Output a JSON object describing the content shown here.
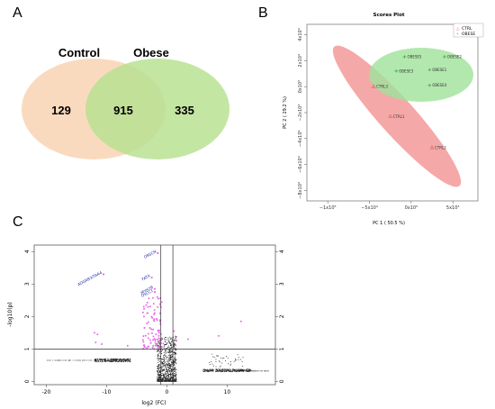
{
  "panels": {
    "a": {
      "letter": "A",
      "set1": "Control",
      "set2": "Obese",
      "only1": "129",
      "both": "915",
      "only2": "335",
      "color1": "#f9d6b8",
      "color2": "#b7e08f"
    },
    "b": {
      "letter": "B",
      "chart_data": {
        "type": "scatter",
        "title": "Scores Plot",
        "xlabel": "PC 1 ( 50.5 %)",
        "ylabel": "PC 2 ( 29.2 %)",
        "xticks": [
          "−1x10⁵",
          "−5x10⁴",
          "0x10⁰",
          "5x10⁴"
        ],
        "yticks": [
          "4x10⁴",
          "2x10⁴",
          "0x10⁰",
          "−2x10⁴",
          "−4x10⁴",
          "−6x10⁴",
          "−8x10⁴"
        ],
        "xlim": [
          -125000,
          80000
        ],
        "ylim": [
          -88000,
          48000
        ],
        "legend_position": "top-right",
        "series": [
          {
            "name": "CTRL",
            "color": "#e05a5a",
            "marker": "triangle",
            "points": [
              {
                "label": "CTRL3",
                "x": -45000,
                "y": 0
              },
              {
                "label": "CTRL1",
                "x": -25000,
                "y": -23000
              },
              {
                "label": "CTRL2",
                "x": 25000,
                "y": -47000
              }
            ]
          },
          {
            "name": "OBESE",
            "color": "#3aa53a",
            "marker": "plus",
            "points": [
              {
                "label": "OBESE5",
                "x": -8000,
                "y": 23000
              },
              {
                "label": "OBESE2",
                "x": 40000,
                "y": 23000
              },
              {
                "label": "OBESE3",
                "x": -18000,
                "y": 12000
              },
              {
                "label": "OBESE1",
                "x": 22000,
                "y": 13000
              },
              {
                "label": "OBESE4",
                "x": 22000,
                "y": 1000
              }
            ]
          }
        ]
      }
    },
    "c": {
      "letter": "C",
      "chart_data": {
        "type": "scatter",
        "xlabel": "log2 (FC)",
        "ylabel": "-log10(p)",
        "xticks": [
          "-20",
          "-10",
          "0",
          "10"
        ],
        "yticks": [
          "0",
          "1",
          "2",
          "3",
          "4"
        ],
        "right_yticks": [
          "0",
          "1",
          "2",
          "3",
          "4"
        ],
        "xlim": [
          -22,
          18
        ],
        "ylim": [
          -0.1,
          4.2
        ],
        "threshold_y": 1,
        "threshold_x": [
          -1,
          1
        ],
        "labeled_genes": [
          {
            "label": "OBSCN",
            "x": -1.5,
            "y": 3.95
          },
          {
            "label": "ADGRB3/TAA4",
            "x": -10.5,
            "y": 3.3
          },
          {
            "label": "FAT4",
            "x": -2.5,
            "y": 3.2
          },
          {
            "label": "MYH7B",
            "x": -2,
            "y": 2.85
          },
          {
            "label": "DSCC1",
            "x": -2,
            "y": 2.75
          }
        ]
      }
    }
  }
}
